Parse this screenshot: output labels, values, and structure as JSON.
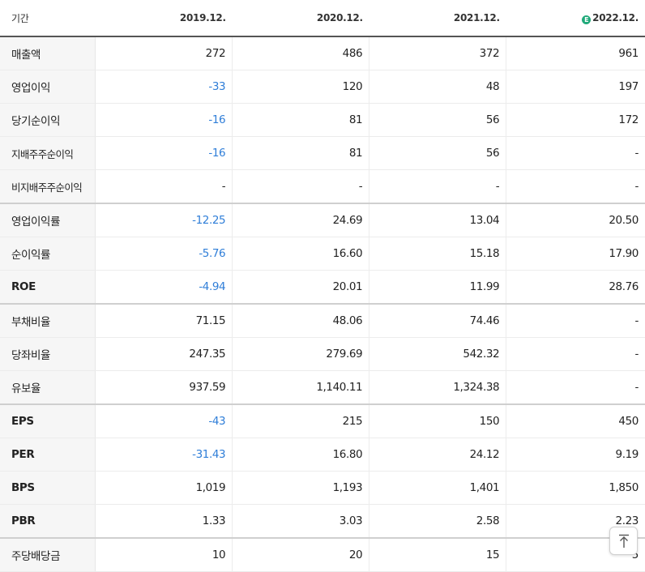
{
  "header": {
    "period_label": "기간",
    "periods": [
      "2019.12.",
      "2020.12.",
      "2021.12.",
      "2022.12."
    ],
    "estimate_icon_glyph": "E"
  },
  "colors": {
    "negative": "#2f7ed8",
    "estimate_icon": "#20a97a"
  },
  "rows": [
    {
      "label": "매출액",
      "values": [
        "272",
        "486",
        "372",
        "961"
      ]
    },
    {
      "label": "영업이익",
      "values": [
        "-33",
        "120",
        "48",
        "197"
      ]
    },
    {
      "label": "당기순이익",
      "values": [
        "-16",
        "81",
        "56",
        "172"
      ]
    },
    {
      "label": "지배주주순이익",
      "values": [
        "-16",
        "81",
        "56",
        "-"
      ]
    },
    {
      "label": "비지배주주순이익",
      "values": [
        "-",
        "-",
        "-",
        "-"
      ]
    },
    {
      "label": "영업이익률",
      "values": [
        "-12.25",
        "24.69",
        "13.04",
        "20.50"
      ]
    },
    {
      "label": "순이익률",
      "values": [
        "-5.76",
        "16.60",
        "15.18",
        "17.90"
      ]
    },
    {
      "label": "ROE",
      "values": [
        "-4.94",
        "20.01",
        "11.99",
        "28.76"
      ]
    },
    {
      "label": "부채비율",
      "values": [
        "71.15",
        "48.06",
        "74.46",
        "-"
      ]
    },
    {
      "label": "당좌비율",
      "values": [
        "247.35",
        "279.69",
        "542.32",
        "-"
      ]
    },
    {
      "label": "유보율",
      "values": [
        "937.59",
        "1,140.11",
        "1,324.38",
        "-"
      ]
    },
    {
      "label": "EPS",
      "values": [
        "-43",
        "215",
        "150",
        "450"
      ]
    },
    {
      "label": "PER",
      "values": [
        "-31.43",
        "16.80",
        "24.12",
        "9.19"
      ]
    },
    {
      "label": "BPS",
      "values": [
        "1,019",
        "1,193",
        "1,401",
        "1,850"
      ]
    },
    {
      "label": "PBR",
      "values": [
        "1.33",
        "3.03",
        "2.58",
        "2.23"
      ]
    },
    {
      "label": "주당배당금",
      "values": [
        "10",
        "20",
        "15",
        "5"
      ]
    }
  ],
  "scroll_top": {
    "icon": "arrow-up-to-line-icon"
  }
}
